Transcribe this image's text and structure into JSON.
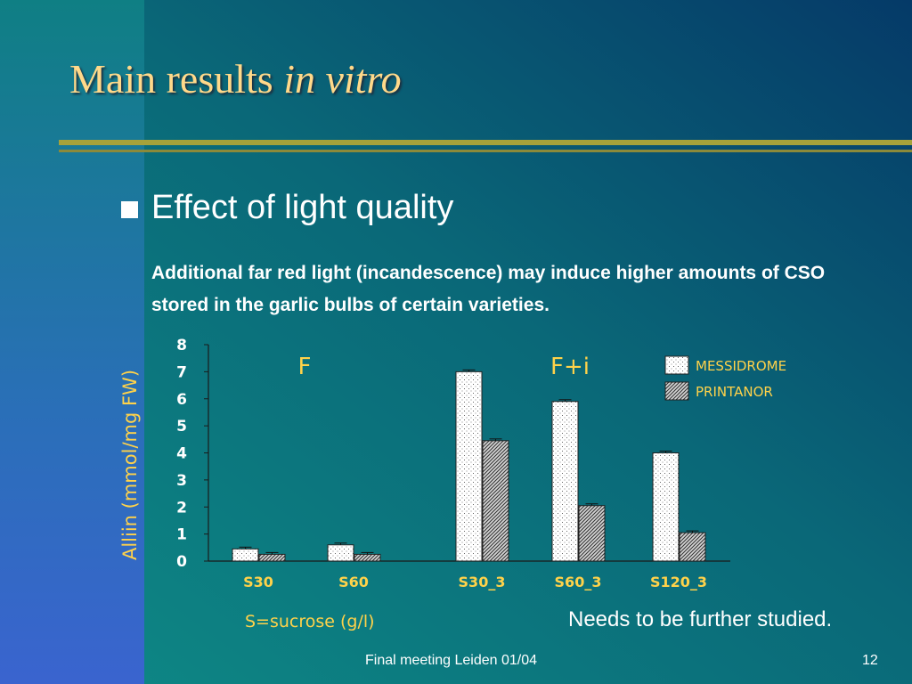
{
  "slide": {
    "title_main": "Main results ",
    "title_italic": "in vitro",
    "bullet": "Effect of light quality",
    "body": "Additional far red light (incandescence) may induce higher amounts of CSO stored in the garlic bulbs of certain varieties.",
    "note": "Needs to be further studied.",
    "footer": "Final meeting Leiden 01/04",
    "page_number": "12",
    "colors": {
      "title": "#ffd98a",
      "chart_text": "#ffd24a",
      "rule": "#a6a23a"
    }
  },
  "chart_data": {
    "type": "bar",
    "categories": [
      "S30",
      "S60",
      "S30_3",
      "S60_3",
      "S120_3"
    ],
    "series": [
      {
        "name": "MESSIDROME",
        "values": [
          0.45,
          0.6,
          7.0,
          5.9,
          4.0
        ]
      },
      {
        "name": "PRINTANOR",
        "values": [
          0.25,
          0.25,
          4.45,
          2.05,
          1.05
        ]
      }
    ],
    "group_labels": [
      "F",
      "F+i"
    ],
    "xlabel": "S=sucrose (g/l)",
    "ylabel": "Alliin (mmol/mg FW)",
    "ylim": [
      0,
      8
    ],
    "yticks": [
      "0",
      "1",
      "2",
      "3",
      "4",
      "5",
      "6",
      "7",
      "8"
    ],
    "grid": false,
    "legend_position": "top-right",
    "error_bars": true
  }
}
